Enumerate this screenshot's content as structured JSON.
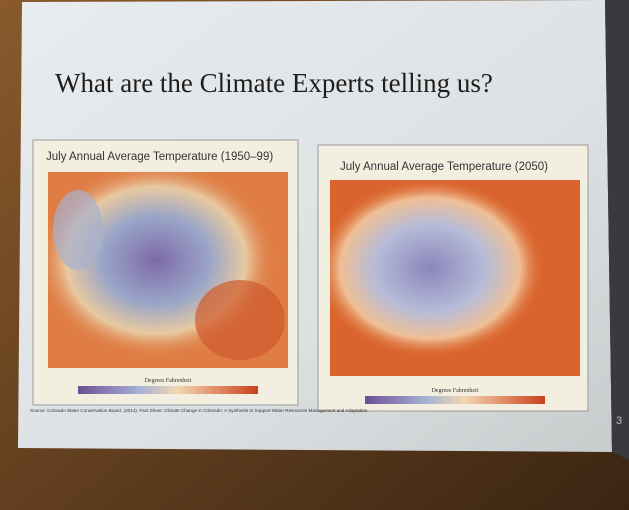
{
  "slide": {
    "title": "What are the Climate Experts telling us?",
    "maps": [
      {
        "title": "July Annual Average Temperature (1950–99)",
        "legend_label": "Degrees Fahrenheit"
      },
      {
        "title": "July Annual Average Temperature (2050)",
        "legend_label": "Degrees Fahrenheit"
      }
    ],
    "source": "Source: Colorado Water Conservation Board. (2014). Fact Sheet: Climate Change in Colorado: A Synthesis to Support Water Resources Management and Adaptation.",
    "page_number": "3"
  }
}
